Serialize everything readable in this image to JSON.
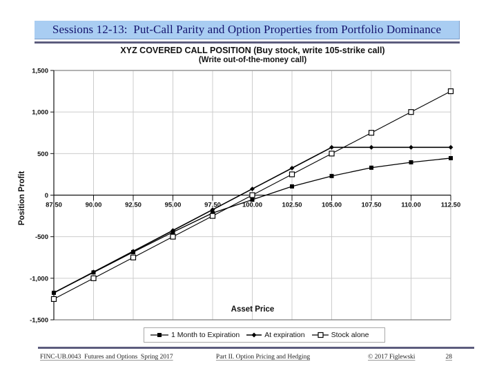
{
  "slide": {
    "header": {
      "title": "Sessions 12-13:  Put-Call Parity and Option Properties from Portfolio Dominance"
    },
    "footer": {
      "course": "FINC-UB.0043  Futures and Options  Spring 2017",
      "section": "Part II. Option Pricing and Hedging",
      "copyright": "© 2017 Figlewski",
      "page": "28"
    }
  },
  "colors": {
    "title_bar_bg": "#a9cdf2",
    "title_text": "#14146e",
    "separator": "#5c5c7d",
    "gridline": "#cccccc",
    "axis": "#111111",
    "series": "#000000"
  },
  "chart_data": {
    "type": "line",
    "title": "XYZ COVERED CALL POSITION (Buy stock, write 105-strike call)",
    "subtitle": "(Write out-of-the-money call)",
    "xlabel": "Asset Price",
    "ylabel": "Position Profit",
    "xlim": [
      87.5,
      112.5
    ],
    "ylim": [
      -1500,
      1500
    ],
    "grid": true,
    "legend_position": "bottom",
    "x": [
      87.5,
      90,
      92.5,
      95,
      97.5,
      100,
      102.5,
      105,
      107.5,
      110,
      112.5
    ],
    "x_tick_labels": [
      "87.50",
      "90.00",
      "92.50",
      "95.00",
      "97.50",
      "100.00",
      "102.50",
      "105.00",
      "107.50",
      "110.00",
      "112.50"
    ],
    "y_ticks": [
      1500,
      1000,
      500,
      0,
      -500,
      -1000,
      -1500
    ],
    "y_tick_labels": [
      "1,500",
      "1,000",
      "500",
      "0",
      "-500",
      "-1,000",
      "-1,500"
    ],
    "series": [
      {
        "name": "1 Month to Expiration",
        "marker": "filled-square",
        "values": [
          -1175,
          -930,
          -685,
          -445,
          -215,
          -55,
          105,
          230,
          330,
          395,
          445
        ]
      },
      {
        "name": "At expiration",
        "marker": "filled-diamond",
        "values": [
          -1175,
          -925,
          -675,
          -425,
          -175,
          75,
          325,
          575,
          575,
          575,
          575
        ]
      },
      {
        "name": "Stock alone",
        "marker": "open-square",
        "values": [
          -1250,
          -1000,
          -750,
          -500,
          -250,
          0,
          250,
          500,
          750,
          1000,
          1250
        ]
      }
    ]
  }
}
